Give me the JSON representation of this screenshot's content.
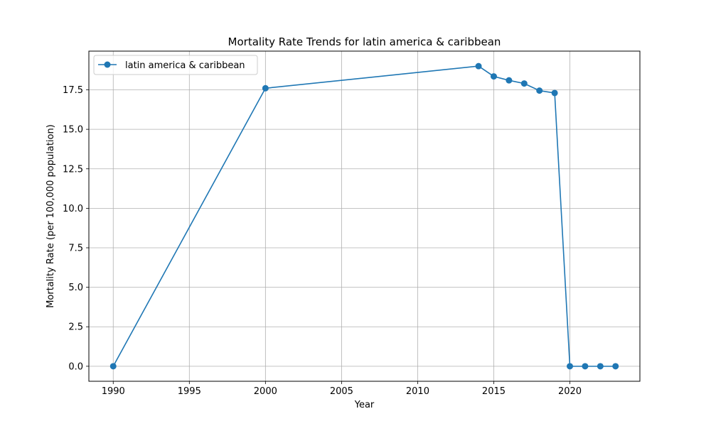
{
  "chart_data": {
    "type": "line",
    "title": "Mortality Rate Trends for latin america & caribbean",
    "xlabel": "Year",
    "ylabel": "Mortality Rate (per 100,000 population)",
    "xlim": [
      1988.4,
      2024.6
    ],
    "ylim": [
      -0.95,
      19.95
    ],
    "xticks": [
      1990,
      1995,
      2000,
      2005,
      2010,
      2015,
      2020
    ],
    "xtick_labels": [
      "1990",
      "1995",
      "2000",
      "2005",
      "2010",
      "2015",
      "2020"
    ],
    "yticks": [
      0,
      2.5,
      5,
      7.5,
      10,
      12.5,
      15,
      17.5
    ],
    "ytick_labels": [
      "0.0",
      "2.5",
      "5.0",
      "7.5",
      "10.0",
      "12.5",
      "15.0",
      "17.5"
    ],
    "grid": true,
    "legend_position": "top-left",
    "series": [
      {
        "name": "latin america & caribbean",
        "color": "#1f77b4",
        "marker": "circle",
        "x": [
          1990,
          2000,
          2014,
          2015,
          2016,
          2017,
          2018,
          2019,
          2020,
          2021,
          2022,
          2023
        ],
        "y": [
          0.0,
          17.6,
          19.0,
          18.35,
          18.1,
          17.9,
          17.45,
          17.3,
          0.0,
          0.0,
          0.0,
          0.0
        ]
      }
    ]
  }
}
